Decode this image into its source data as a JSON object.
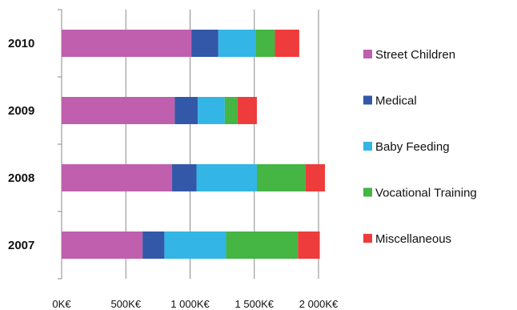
{
  "chart_data": {
    "type": "bar",
    "orientation": "horizontal",
    "stacked": true,
    "title": "",
    "xlabel": "",
    "ylabel": "",
    "categories": [
      "2010",
      "2009",
      "2008",
      "2007"
    ],
    "series": [
      {
        "name": "Street Children",
        "color": "#c05fad",
        "values": [
          1010,
          880,
          860,
          630
        ]
      },
      {
        "name": "Medical",
        "color": "#3358a8",
        "values": [
          210,
          180,
          190,
          170
        ]
      },
      {
        "name": "Baby Feeding",
        "color": "#33b5e5",
        "values": [
          290,
          210,
          470,
          480
        ]
      },
      {
        "name": "Vocational Training",
        "color": "#45b543",
        "values": [
          150,
          100,
          380,
          560
        ]
      },
      {
        "name": "Miscellaneous",
        "color": "#ee3c3c",
        "values": [
          190,
          150,
          150,
          170
        ]
      }
    ],
    "xlim": [
      0,
      2000
    ],
    "xticks": [
      0,
      500,
      1000,
      1500,
      2000
    ],
    "xtick_labels": [
      "0K€",
      "500K€",
      "1 000K€",
      "1 500K€",
      "2 000K€"
    ],
    "grid": "vertical",
    "legend_position": "right"
  }
}
